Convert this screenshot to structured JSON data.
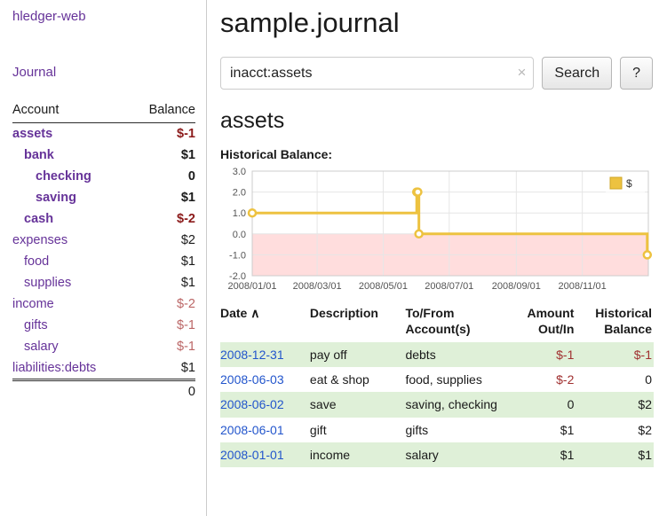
{
  "colors": {
    "purple": "#663399",
    "neg_dark": "#8b1a1a",
    "neg_rose": "#bb6666",
    "neg_register": "#a03030",
    "date_blue": "#2255cc",
    "stripe_green": "#dff0d8",
    "chart_line": "#edc240",
    "chart_neg_fill": "#ffdddd",
    "chart_grid": "#e6e6e6",
    "chart_border": "#cccccc",
    "chart_tick_text": "#545454"
  },
  "sidebar": {
    "app_title": "hledger-web",
    "journal_link": "Journal",
    "accounts_table": {
      "headers": {
        "account": "Account",
        "balance": "Balance"
      },
      "rows": [
        {
          "name": "assets",
          "indent": 0,
          "bold": true,
          "name_style": "red",
          "balance": "$-1",
          "balance_style": "red",
          "balance_bold": true
        },
        {
          "name": "bank",
          "indent": 1,
          "bold": true,
          "name_style": "purple",
          "balance": "$1",
          "balance_style": "black",
          "balance_bold": true
        },
        {
          "name": "checking",
          "indent": 2,
          "bold": true,
          "name_style": "purple",
          "balance": "0",
          "balance_style": "black",
          "balance_bold": true
        },
        {
          "name": "saving",
          "indent": 2,
          "bold": true,
          "name_style": "purple",
          "balance": "$1",
          "balance_style": "black",
          "balance_bold": true
        },
        {
          "name": "cash",
          "indent": 1,
          "bold": true,
          "name_style": "red",
          "balance": "$-2",
          "balance_style": "red",
          "balance_bold": true
        },
        {
          "name": "expenses",
          "indent": 0,
          "bold": false,
          "name_style": "purple",
          "balance": "$2",
          "balance_style": "black",
          "balance_bold": false
        },
        {
          "name": "food",
          "indent": 1,
          "bold": false,
          "name_style": "purple",
          "balance": "$1",
          "balance_style": "black",
          "balance_bold": false
        },
        {
          "name": "supplies",
          "indent": 1,
          "bold": false,
          "name_style": "purple",
          "balance": "$1",
          "balance_style": "black",
          "balance_bold": false
        },
        {
          "name": "income",
          "indent": 0,
          "bold": false,
          "name_style": "purple",
          "balance": "$-2",
          "balance_style": "rose",
          "balance_bold": false
        },
        {
          "name": "gifts",
          "indent": 1,
          "bold": false,
          "name_style": "purple",
          "balance": "$-1",
          "balance_style": "rose",
          "balance_bold": false
        },
        {
          "name": "salary",
          "indent": 1,
          "bold": false,
          "name_style": "purple",
          "balance": "$-1",
          "balance_style": "rose",
          "balance_bold": false
        },
        {
          "name": "liabilities:debts",
          "indent": 0,
          "bold": false,
          "name_style": "purple",
          "balance": "$1",
          "balance_style": "black",
          "balance_bold": false
        }
      ],
      "total": "0"
    }
  },
  "main": {
    "title": "sample.journal",
    "search": {
      "value": "inacct:assets",
      "clear_icon": "×",
      "button_label": "Search",
      "help_label": "?"
    },
    "account_heading": "assets",
    "chart_label": "Historical Balance:",
    "register": {
      "headers": {
        "date": "Date",
        "description": "Description",
        "accounts": "To/From Account(s)",
        "amount": "Amount Out/In",
        "balance": "Historical Balance"
      },
      "sort_icon": "∧",
      "rows": [
        {
          "date": "2008-12-31",
          "description": "pay off",
          "accounts": "debts",
          "amount": "$-1",
          "balance": "$-1"
        },
        {
          "date": "2008-06-03",
          "description": "eat & shop",
          "accounts": "food, supplies",
          "amount": "$-2",
          "balance": "0"
        },
        {
          "date": "2008-06-02",
          "description": "save",
          "accounts": "saving, checking",
          "amount": "0",
          "balance": "$2"
        },
        {
          "date": "2008-06-01",
          "description": "gift",
          "accounts": "gifts",
          "amount": "$1",
          "balance": "$2"
        },
        {
          "date": "2008-01-01",
          "description": "income",
          "accounts": "salary",
          "amount": "$1",
          "balance": "$1"
        }
      ]
    }
  },
  "chart_data": {
    "type": "line",
    "step": true,
    "title": "Historical Balance:",
    "legend": {
      "label": "$",
      "position": "top-right"
    },
    "ylim": [
      -2,
      3
    ],
    "y_ticks": [
      "3.0",
      "2.0",
      "1.0",
      "0.0",
      "-1.0",
      "-2.0"
    ],
    "x_range": [
      "2008-01-01",
      "2009-01-01"
    ],
    "x_ticks": [
      {
        "date": "2008-01-01",
        "label": "2008/01/01"
      },
      {
        "date": "2008-03-01",
        "label": "2008/03/01"
      },
      {
        "date": "2008-05-01",
        "label": "2008/05/01"
      },
      {
        "date": "2008-07-01",
        "label": "2008/07/01"
      },
      {
        "date": "2008-09-01",
        "label": "2008/09/01"
      },
      {
        "date": "2008-11-01",
        "label": "2008/11/01"
      }
    ],
    "series": [
      {
        "name": "$",
        "points": [
          [
            "2008-01-01",
            1
          ],
          [
            "2008-06-01",
            2
          ],
          [
            "2008-06-02",
            2
          ],
          [
            "2008-06-03",
            0
          ],
          [
            "2008-12-31",
            -1
          ]
        ]
      }
    ],
    "negative_region": {
      "from": 0,
      "to": -2
    }
  }
}
